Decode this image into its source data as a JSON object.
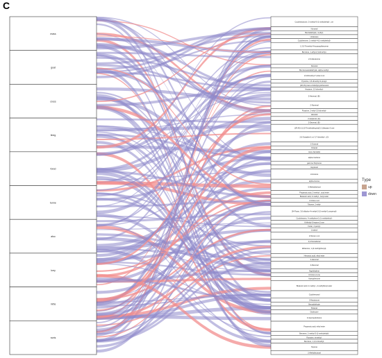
{
  "panel_label": "C",
  "legend": {
    "title": "Type",
    "items": [
      {
        "label": "up",
        "color": "#c7a48f"
      },
      {
        "label": "down",
        "color": "#9e97d3"
      }
    ]
  },
  "colors": {
    "up_flow": "#f28d8d",
    "down_flow": "#8e88cb",
    "node_fill": "#ffffff",
    "node_stroke": "#333333"
  },
  "left_nodes": [
    "mass",
    "goat",
    "cross",
    "lineg",
    "fored",
    "tunne",
    "also",
    "lorry",
    "mths",
    "norts"
  ],
  "right_nodes": [
    "Cyclohexanone, 2-methyl-5-(1-methylethyl)-, cis-",
    "Nonanal",
    "Benzaldehyde, 4-ethyl-",
    "Undecane",
    "Cyclohexene, 1-methyl-4-(1-methylethyl)-",
    "1,3,5-Trimethyl-4-isopropylbenzene",
    "Benzene, 1-ethyl-2,3-dimethyl-",
    "2-Undecanone",
    "Decanal",
    "Benzeneacetaldehyde, alpha-methyl-",
    "2,6-Dimethyl-7-octen-2-ol",
    "Pyrazine, 2,5-dimethyl-3-propyl-",
    "(1R,2S)-trans-2-Methylcyclohexanol",
    "Heptane, 2,3-dimethyl-",
    "2-Hexenal, (E)-",
    "2-Nonenal",
    "Pyrazine, 2-ethyl-3,5-dimethyl-",
    "Hexanal",
    "2-Heptenal, (E)-",
    "2-Decenal, (E)-",
    "(1R,4S)-1,5,5-Trimethylbicyclo[2.2.1]heptan-2-one",
    "2,6-Octadien-1-ol, 3,7-dimethyl-, (Z)-",
    "2-Octenal",
    "Octanal",
    "trans-Nerolidol",
    "alpha-Cedrene",
    "gamma-Terpinene",
    "Heptanal",
    "Limonene",
    "alpha-Ionone",
    "5-Methylfurfural",
    "Propanoic acid, 2-methyl-, octyl ester",
    "Butanoic acid, 3-methyl-, butyl ester",
    "2-Octen-1-ol",
    "Toluene, 2-ethyl-",
    "2H-Pyran, 3,6-dihydro-4-methyl-2-(2-methyl-1-propenyl)-",
    "Cyclohexene, 4-methylene-1-(1-methylethyl)-",
    "6-Methyl-5-hepten-2-one",
    "Furan, 2-pentyl-",
    "Linalool",
    "2-Nonen-1-ol",
    "2,4-Nonadienal",
    "Ethanone, 1-(4-methylphenyl)-",
    "Hexanoic acid, ethyl ester",
    "2-Hexenal",
    "2-Decenal",
    "Naphthalene",
    "3-Octen-2-one",
    "Acetophenone",
    "Butanoic acid, 2-methyl-, 2-methylbutyl ester",
    "Cyclohexanol",
    "2-Heptanone",
    "Benzaldehyde",
    "Butanal",
    "Dodecane",
    "4-Isopropyltoluene",
    "Propanoic acid, ethyl ester",
    "Benzene, 1-methyl-3-(1-methylethyl)-",
    "Pyrazine, trimethyl-",
    "Benzene, 1,2,4-trimethyl-",
    "Styrene",
    "2-Methylbutanal"
  ]
}
